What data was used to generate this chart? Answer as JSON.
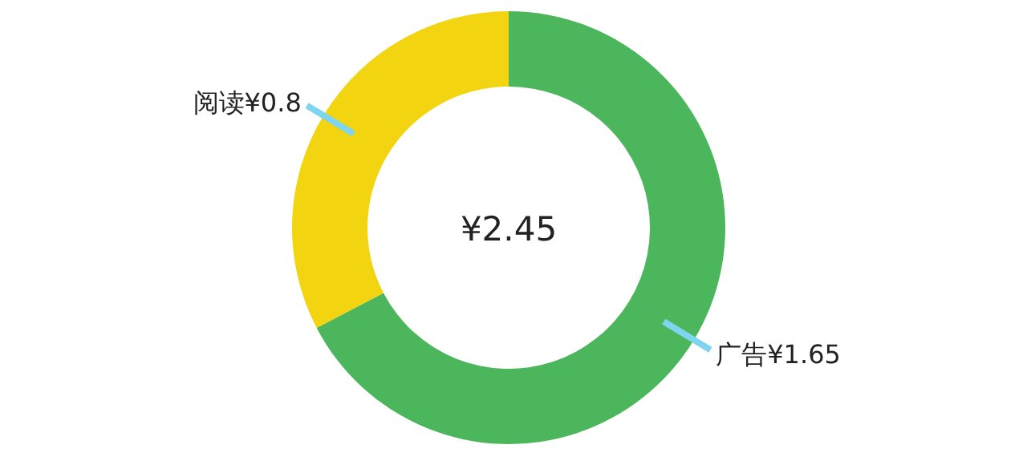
{
  "chart_data": {
    "type": "donut",
    "categories": [
      "广告",
      "阅读"
    ],
    "values": [
      1.65,
      0.8
    ],
    "colors": [
      "#4cb65c",
      "#f2d411"
    ],
    "value_labels": [
      "¥1.65",
      "¥0.8"
    ],
    "annotations": [
      "¥2.45"
    ]
  }
}
